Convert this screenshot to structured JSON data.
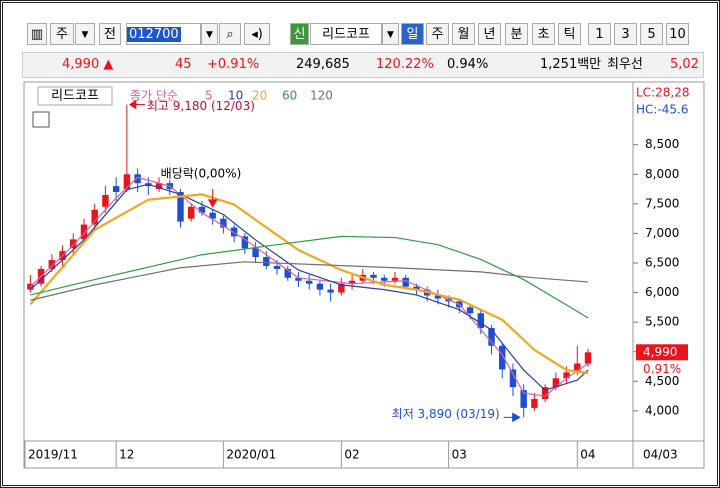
{
  "toolbar": {
    "period": "주",
    "prev": "전",
    "code": "012700",
    "badge": "신",
    "name": "리드코프",
    "tabs": [
      "일",
      "주",
      "월",
      "년",
      "분",
      "초",
      "틱"
    ],
    "nums": [
      "1",
      "3",
      "5",
      "10"
    ]
  },
  "quote": {
    "price": "4,990 ▲",
    "change": "45",
    "rate": "+0.91%",
    "volume": "249,685",
    "vol_rate": "120.22%",
    "turnover": "0.94%",
    "amount": "1,251백만",
    "best": "최우선",
    "best_price": "5,02"
  },
  "chart_data": {
    "type": "candlestick",
    "name_label": "리드코프",
    "legend_prefix": "종가 단순",
    "up_color": "#e8141e",
    "down_color": "#1a4fd6",
    "ohlc": [
      [
        6050,
        6300,
        6000,
        6150
      ],
      [
        6150,
        6450,
        6100,
        6400
      ],
      [
        6400,
        6650,
        6350,
        6550
      ],
      [
        6550,
        6800,
        6450,
        6700
      ],
      [
        6750,
        7000,
        6650,
        6900
      ],
      [
        6900,
        7250,
        6850,
        7150
      ],
      [
        7150,
        7500,
        7050,
        7400
      ],
      [
        7450,
        7800,
        7350,
        7650
      ],
      [
        7800,
        7950,
        7550,
        7700
      ],
      [
        7750,
        9180,
        7700,
        8000
      ],
      [
        8000,
        8100,
        7700,
        7850
      ],
      [
        7850,
        7950,
        7650,
        7800
      ],
      [
        7750,
        7950,
        7700,
        7850
      ],
      [
        7850,
        7900,
        7650,
        7750
      ],
      [
        7700,
        7750,
        7100,
        7200
      ],
      [
        7250,
        7500,
        7200,
        7450
      ],
      [
        7450,
        7550,
        7300,
        7350
      ],
      [
        7350,
        7400,
        7150,
        7250
      ],
      [
        7250,
        7300,
        7000,
        7100
      ],
      [
        7100,
        7150,
        6850,
        6950
      ],
      [
        6950,
        7000,
        6650,
        6750
      ],
      [
        6750,
        6850,
        6500,
        6600
      ],
      [
        6600,
        6700,
        6400,
        6450
      ],
      [
        6450,
        6550,
        6300,
        6400
      ],
      [
        6400,
        6450,
        6200,
        6250
      ],
      [
        6250,
        6350,
        6100,
        6200
      ],
      [
        6200,
        6300,
        6050,
        6150
      ],
      [
        6150,
        6200,
        5950,
        6050
      ],
      [
        6050,
        6150,
        5850,
        6000
      ],
      [
        6000,
        6250,
        5950,
        6150
      ],
      [
        6150,
        6300,
        6050,
        6200
      ],
      [
        6200,
        6400,
        6150,
        6300
      ],
      [
        6300,
        6350,
        6150,
        6250
      ],
      [
        6250,
        6300,
        6100,
        6200
      ],
      [
        6200,
        6350,
        6150,
        6250
      ],
      [
        6250,
        6300,
        6050,
        6100
      ],
      [
        6100,
        6150,
        5950,
        6050
      ],
      [
        6050,
        6100,
        5850,
        5950
      ],
      [
        5950,
        6050,
        5800,
        5900
      ],
      [
        5900,
        5950,
        5750,
        5850
      ],
      [
        5850,
        5900,
        5650,
        5750
      ],
      [
        5750,
        5800,
        5550,
        5650
      ],
      [
        5650,
        5700,
        5300,
        5400
      ],
      [
        5400,
        5450,
        4950,
        5100
      ],
      [
        5100,
        5150,
        4550,
        4700
      ],
      [
        4700,
        4800,
        4250,
        4400
      ],
      [
        4350,
        4450,
        3890,
        4050
      ],
      [
        4050,
        4300,
        4000,
        4200
      ],
      [
        4200,
        4450,
        4150,
        4400
      ],
      [
        4400,
        4650,
        4350,
        4550
      ],
      [
        4550,
        4750,
        4450,
        4650
      ],
      [
        4650,
        5100,
        4600,
        4800
      ],
      [
        4800,
        5050,
        4750,
        4990
      ]
    ],
    "series": [
      {
        "name": "5",
        "color": "#e060a0",
        "x": [
          0,
          4,
          8,
          10,
          13,
          16,
          20,
          25,
          30,
          35,
          40,
          44,
          46,
          48,
          50,
          52
        ],
        "values": [
          6100,
          6800,
          7600,
          7950,
          7800,
          7350,
          6900,
          6250,
          6150,
          6200,
          5800,
          4950,
          4300,
          4250,
          4550,
          4800
        ]
      },
      {
        "name": "10",
        "color": "#2a3ea8",
        "x": [
          0,
          5,
          9,
          11,
          14,
          18,
          21,
          25,
          29,
          33,
          36,
          40,
          43,
          46,
          48,
          51,
          52
        ],
        "values": [
          6050,
          6890,
          7740,
          7830,
          7660,
          7320,
          6890,
          6380,
          6130,
          6050,
          5960,
          5710,
          5370,
          4690,
          4350,
          4520,
          4690
        ]
      },
      {
        "name": "20",
        "color": "#f0a820",
        "x": [
          0,
          6,
          11,
          16,
          19,
          21,
          25,
          29,
          33,
          36,
          40,
          44,
          47,
          50,
          52
        ],
        "values": [
          5800,
          7060,
          7570,
          7660,
          7490,
          7230,
          6720,
          6380,
          6130,
          6050,
          5880,
          5540,
          5030,
          4690,
          4640
        ]
      },
      {
        "name": "60",
        "color": "#2e9e3e",
        "x": [
          0,
          6,
          16,
          23,
          29,
          34,
          38,
          42,
          46,
          50,
          52
        ],
        "values": [
          5960,
          6220,
          6640,
          6810,
          6950,
          6930,
          6810,
          6560,
          6220,
          5790,
          5570
        ]
      },
      {
        "name": "120",
        "color": "#707070",
        "x": [
          0,
          6,
          14,
          20,
          27,
          34,
          42,
          47,
          52
        ],
        "values": [
          5870,
          6130,
          6420,
          6520,
          6470,
          6420,
          6350,
          6250,
          6180
        ]
      }
    ],
    "xlim": [
      -0.5,
      56.1
    ],
    "ylim": [
      3490,
      9527
    ],
    "xticks": [
      {
        "value": 0,
        "label": "2019/11"
      },
      {
        "value": 8,
        "label": "12"
      },
      {
        "value": 18,
        "label": "2020/01"
      },
      {
        "value": 29,
        "label": "02"
      },
      {
        "value": 39,
        "label": "03"
      },
      {
        "value": 51,
        "label": "04"
      }
    ],
    "x_end_label": "04/03",
    "yticks": [
      {
        "value": 4000,
        "label": "4,000"
      },
      {
        "value": 4500,
        "label": "4,500"
      },
      {
        "value": 5000,
        "label": "5,000"
      },
      {
        "value": 5500,
        "label": "5,500"
      },
      {
        "value": 6000,
        "label": "6,000"
      },
      {
        "value": 6500,
        "label": "6,500"
      },
      {
        "value": 7000,
        "label": "7,000"
      },
      {
        "value": 7500,
        "label": "7,500"
      },
      {
        "value": 8000,
        "label": "8,000"
      },
      {
        "value": 8500,
        "label": "8,500"
      }
    ],
    "grid": false,
    "current_price": {
      "value": 4990,
      "label": "4,990"
    },
    "current_change": "0.91%",
    "lc_label": "LC:28,28",
    "hc_label": "HC:-45.6",
    "annotations": [
      {
        "text": "최고 9,180 (12/03)",
        "x": 9,
        "value": 9180,
        "kind": "high"
      },
      {
        "text": "배당락(0,00%)",
        "x": 17,
        "value": 7450,
        "kind": "event"
      },
      {
        "text": "최저 3,890 (03/19)",
        "x": 46,
        "value": 3890,
        "kind": "low"
      }
    ]
  }
}
